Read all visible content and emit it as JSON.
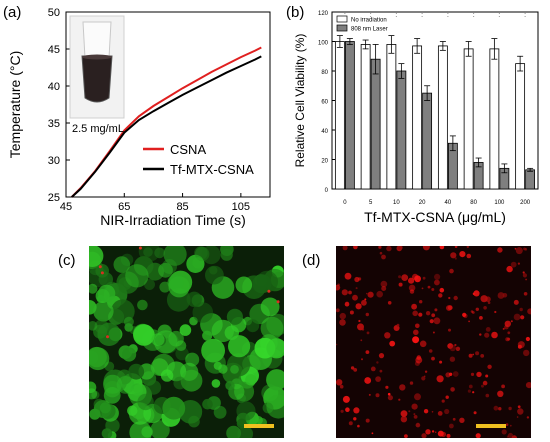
{
  "panels": {
    "a": "(a)",
    "b": "(b)",
    "c": "(c)",
    "d": "(d)"
  },
  "chart_data": [
    {
      "type": "line",
      "xlabel": "NIR-Irradiation Time (s)",
      "ylabel": "Temperature (°C)",
      "xlim": [
        45,
        115
      ],
      "ylim": [
        25,
        50
      ],
      "xticks": [
        45,
        65,
        85,
        105
      ],
      "yticks": [
        25,
        30,
        35,
        40,
        45,
        50
      ],
      "legend_position": "center-right",
      "inset_label": "2.5 mg/mL",
      "series": [
        {
          "name": "CSNA",
          "color": "#e02020",
          "x": [
            47,
            50,
            55,
            60,
            65,
            70,
            75,
            80,
            85,
            90,
            95,
            100,
            105,
            110,
            112
          ],
          "y": [
            25,
            26.2,
            28.5,
            31.2,
            34.0,
            35.9,
            37.3,
            38.5,
            39.7,
            40.8,
            41.9,
            42.9,
            43.9,
            44.8,
            45.2
          ]
        },
        {
          "name": "Tf-MTX-CSNA",
          "color": "#000000",
          "x": [
            47,
            50,
            55,
            60,
            65,
            70,
            75,
            80,
            85,
            90,
            95,
            100,
            105,
            110,
            112
          ],
          "y": [
            25,
            26.1,
            28.4,
            31.0,
            33.7,
            35.4,
            36.6,
            37.7,
            38.8,
            39.8,
            40.8,
            41.8,
            42.7,
            43.6,
            44.0
          ]
        }
      ]
    },
    {
      "type": "bar",
      "xlabel": "Tf-MTX-CSNA (μg/mL)",
      "ylabel": "Relative Cell Viability (%)",
      "ylim": [
        0,
        120
      ],
      "yticks": [
        0,
        20,
        40,
        60,
        80,
        100,
        120
      ],
      "legend_position": "top-left",
      "categories": [
        "0",
        "5",
        "10",
        "20",
        "40",
        "80",
        "100",
        "200"
      ],
      "series": [
        {
          "name": "No irradiation",
          "color": "#ffffff",
          "values": [
            100,
            98,
            98,
            97,
            97,
            95,
            95,
            85
          ],
          "errors": [
            4,
            3,
            6,
            5,
            3,
            5,
            7,
            5
          ]
        },
        {
          "name": "808 nm Laser",
          "color": "#7f7f7f",
          "values": [
            100,
            88,
            80,
            65,
            31,
            18,
            14,
            13
          ],
          "errors": [
            2,
            10,
            5,
            5,
            5,
            3,
            3,
            1
          ]
        }
      ]
    }
  ]
}
